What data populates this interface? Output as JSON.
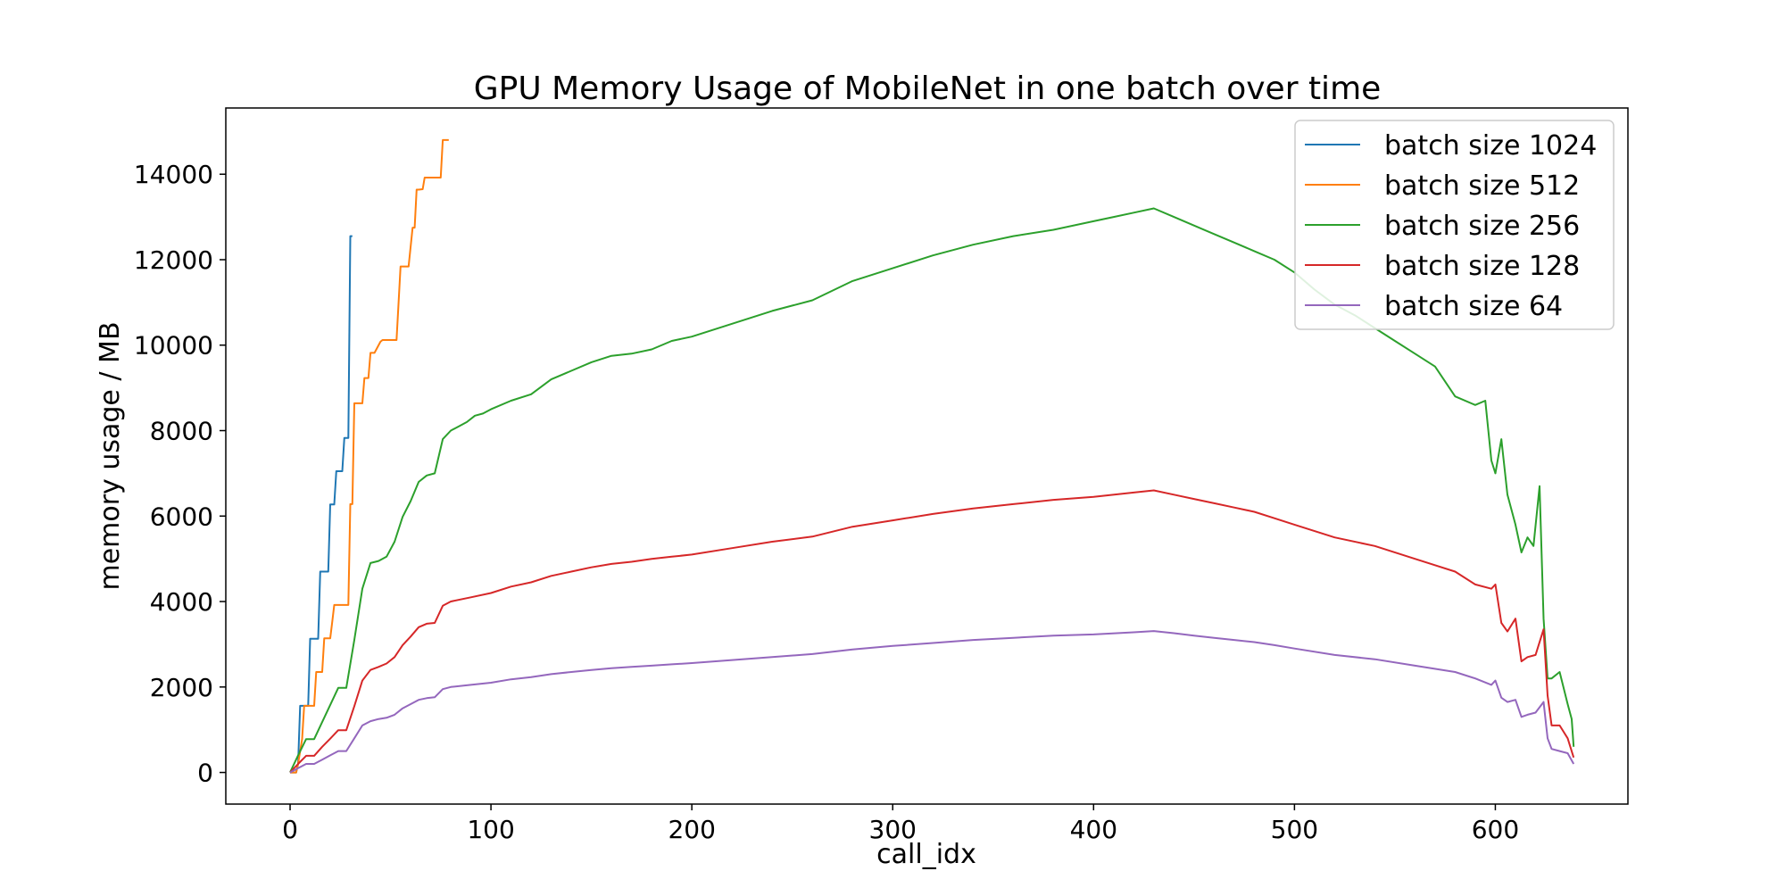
{
  "chart_data": {
    "type": "line",
    "title": "GPU Memory Usage of MobileNet in one batch over time",
    "xlabel": "call_idx",
    "ylabel": "memory usage / MB",
    "xlim": [
      -32,
      666
    ],
    "ylim": [
      -740,
      15550
    ],
    "xticks": [
      0,
      100,
      200,
      300,
      400,
      500,
      600
    ],
    "yticks": [
      0,
      2000,
      4000,
      6000,
      8000,
      10000,
      12000,
      14000
    ],
    "grid": false,
    "legend_position": "top-right",
    "series": [
      {
        "name": "batch size 1024",
        "color": "#1f77b4",
        "x": [
          0,
          3,
          4,
          5,
          6,
          9,
          10,
          13,
          14,
          15,
          16,
          19,
          20,
          22,
          23,
          26,
          27,
          29,
          30,
          31
        ],
        "y": [
          0,
          0,
          200,
          1560,
          1560,
          1560,
          3130,
          3130,
          3130,
          4700,
          4700,
          4700,
          6270,
          6270,
          7050,
          7050,
          7830,
          7830,
          12550,
          12550
        ]
      },
      {
        "name": "batch size 512",
        "color": "#ff7f0e",
        "x": [
          0,
          3,
          4,
          6,
          7,
          12,
          13,
          16,
          17,
          20,
          21,
          22,
          29,
          30,
          31,
          32,
          36,
          37,
          39,
          40,
          42,
          45,
          46,
          50,
          53,
          54,
          55,
          56,
          59,
          61,
          62,
          63,
          64,
          66,
          67,
          69,
          70,
          75,
          76,
          77,
          79
        ],
        "y": [
          0,
          0,
          200,
          780,
          1560,
          1560,
          2350,
          2350,
          3140,
          3140,
          3530,
          3920,
          3920,
          6280,
          6280,
          8640,
          8640,
          9230,
          9230,
          9820,
          9820,
          10080,
          10120,
          10120,
          10120,
          11000,
          11840,
          11840,
          11840,
          12750,
          12750,
          13640,
          13640,
          13650,
          13920,
          13920,
          13920,
          13920,
          14800,
          14800,
          14800
        ]
      },
      {
        "name": "batch size 256",
        "color": "#2ca02c",
        "x": [
          0,
          4,
          8,
          12,
          16,
          20,
          24,
          28,
          32,
          36,
          40,
          44,
          48,
          52,
          56,
          60,
          64,
          68,
          72,
          76,
          80,
          84,
          88,
          92,
          96,
          100,
          110,
          120,
          130,
          140,
          150,
          160,
          170,
          180,
          190,
          200,
          220,
          240,
          260,
          280,
          300,
          320,
          340,
          360,
          380,
          400,
          410,
          420,
          430,
          440,
          450,
          460,
          470,
          480,
          490,
          500,
          510,
          520,
          530,
          540,
          550,
          560,
          570,
          580,
          590,
          595,
          598,
          600,
          603,
          606,
          610,
          613,
          616,
          619,
          622,
          624,
          626,
          628,
          632,
          636,
          638,
          639
        ],
        "y": [
          0,
          400,
          780,
          780,
          1180,
          1580,
          1980,
          1980,
          3100,
          4300,
          4900,
          4950,
          5050,
          5400,
          5980,
          6350,
          6800,
          6950,
          7000,
          7800,
          8000,
          8100,
          8200,
          8350,
          8400,
          8500,
          8700,
          8850,
          9200,
          9400,
          9600,
          9750,
          9800,
          9900,
          10100,
          10200,
          10500,
          10800,
          11050,
          11500,
          11800,
          12100,
          12350,
          12550,
          12700,
          12900,
          13000,
          13100,
          13200,
          13000,
          12800,
          12600,
          12400,
          12200,
          12000,
          11700,
          11300,
          10950,
          10700,
          10400,
          10100,
          9800,
          9500,
          8800,
          8600,
          8700,
          7300,
          7000,
          7800,
          6500,
          5800,
          5150,
          5500,
          5300,
          6700,
          3600,
          2200,
          2200,
          2350,
          1600,
          1250,
          600
        ]
      },
      {
        "name": "batch size 128",
        "color": "#d62728",
        "x": [
          0,
          4,
          8,
          12,
          16,
          20,
          24,
          28,
          32,
          36,
          40,
          44,
          48,
          52,
          56,
          60,
          64,
          68,
          72,
          76,
          80,
          90,
          100,
          110,
          120,
          130,
          140,
          150,
          160,
          170,
          180,
          190,
          200,
          220,
          240,
          260,
          280,
          300,
          320,
          340,
          360,
          380,
          400,
          420,
          430,
          440,
          450,
          460,
          470,
          480,
          490,
          500,
          520,
          540,
          560,
          580,
          590,
          598,
          600,
          603,
          606,
          610,
          613,
          616,
          620,
          624,
          626,
          628,
          632,
          636,
          639
        ],
        "y": [
          0,
          200,
          390,
          390,
          600,
          790,
          990,
          990,
          1550,
          2150,
          2400,
          2470,
          2550,
          2700,
          2980,
          3180,
          3400,
          3480,
          3500,
          3900,
          4000,
          4100,
          4200,
          4350,
          4450,
          4600,
          4700,
          4800,
          4880,
          4930,
          5000,
          5050,
          5100,
          5250,
          5400,
          5520,
          5750,
          5900,
          6050,
          6180,
          6280,
          6380,
          6450,
          6550,
          6600,
          6500,
          6400,
          6300,
          6200,
          6100,
          5950,
          5800,
          5500,
          5300,
          5000,
          4700,
          4400,
          4300,
          4400,
          3500,
          3300,
          3600,
          2600,
          2700,
          2750,
          3350,
          1800,
          1100,
          1100,
          800,
          350
        ]
      },
      {
        "name": "batch size 64",
        "color": "#9467bd",
        "x": [
          0,
          4,
          8,
          12,
          16,
          20,
          24,
          28,
          32,
          36,
          40,
          44,
          48,
          52,
          56,
          60,
          64,
          68,
          72,
          76,
          80,
          90,
          100,
          110,
          120,
          130,
          140,
          150,
          160,
          170,
          180,
          190,
          200,
          220,
          240,
          260,
          280,
          300,
          320,
          340,
          360,
          380,
          400,
          420,
          430,
          440,
          450,
          460,
          470,
          480,
          490,
          500,
          520,
          540,
          560,
          580,
          590,
          598,
          600,
          603,
          606,
          610,
          613,
          616,
          620,
          624,
          626,
          628,
          632,
          636,
          639
        ],
        "y": [
          0,
          100,
          200,
          200,
          300,
          400,
          500,
          500,
          800,
          1100,
          1200,
          1250,
          1280,
          1350,
          1500,
          1600,
          1700,
          1740,
          1760,
          1950,
          2000,
          2050,
          2100,
          2180,
          2230,
          2300,
          2350,
          2400,
          2440,
          2470,
          2500,
          2530,
          2560,
          2630,
          2700,
          2770,
          2880,
          2960,
          3030,
          3100,
          3150,
          3200,
          3230,
          3280,
          3310,
          3260,
          3200,
          3150,
          3100,
          3050,
          2980,
          2900,
          2750,
          2650,
          2500,
          2350,
          2200,
          2050,
          2150,
          1750,
          1650,
          1700,
          1300,
          1350,
          1400,
          1650,
          800,
          550,
          500,
          450,
          200
        ]
      }
    ]
  }
}
